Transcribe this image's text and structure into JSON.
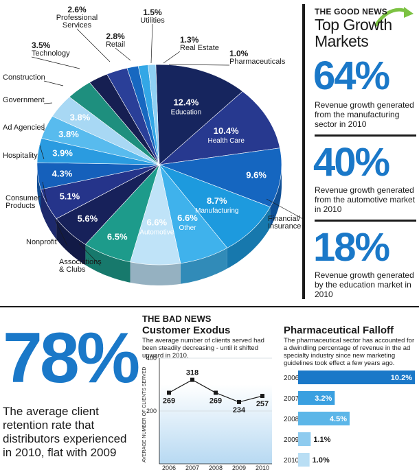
{
  "chart_data": [
    {
      "type": "pie",
      "slices": [
        {
          "name": "Education",
          "value": 12.4,
          "label": "12.4%",
          "color": "#16255e",
          "inside": true
        },
        {
          "name": "Health Care",
          "value": 10.4,
          "label": "10.4%",
          "color": "#27398f",
          "inside": true
        },
        {
          "name": "Financial/ Insurance",
          "value": 9.6,
          "label": "9.6%",
          "color": "#1566c0",
          "inside": false
        },
        {
          "name": "Manufacturing",
          "value": 8.7,
          "label": "8.7%",
          "color": "#1d9ade",
          "inside": true
        },
        {
          "name": "Other",
          "value": 6.6,
          "label": "6.6%",
          "color": "#3fb2ec",
          "inside": true
        },
        {
          "name": "Automotive",
          "value": 6.6,
          "label": "6.6%",
          "color": "#bfe3f8",
          "inside": true
        },
        {
          "name": "Associations & Clubs",
          "value": 6.5,
          "label": "6.5%",
          "color": "#1d9b8b",
          "inside": false
        },
        {
          "name": "Nonprofit",
          "value": 5.6,
          "label": "5.6%",
          "color": "#17215a",
          "inside": false
        },
        {
          "name": "Consumer Products",
          "value": 5.1,
          "label": "5.1%",
          "color": "#25348a",
          "inside": false
        },
        {
          "name": "Hospitality",
          "value": 4.3,
          "label": "4.3%",
          "color": "#1560bb",
          "inside": false
        },
        {
          "name": "Ad Agencies",
          "value": 3.9,
          "label": "3.9%",
          "color": "#2a9be0",
          "inside": false
        },
        {
          "name": "Government",
          "value": 3.8,
          "label": "3.8%",
          "color": "#58bbee",
          "inside": false
        },
        {
          "name": "Construction",
          "value": 3.8,
          "label": "3.8%",
          "color": "#a8d8f4",
          "inside": false
        },
        {
          "name": "Technology",
          "value": 3.5,
          "label": "3.5%",
          "color": "#1e8f7e",
          "inside": false
        },
        {
          "name": "Professional Services",
          "value": 2.6,
          "label": "2.6%",
          "color": "#161f52",
          "inside": false
        },
        {
          "name": "Retail",
          "value": 2.8,
          "label": "2.8%",
          "color": "#2a3f98",
          "inside": false
        },
        {
          "name": "Utilities",
          "value": 1.5,
          "label": "1.5%",
          "color": "#1768c0",
          "inside": false
        },
        {
          "name": "Real Estate",
          "value": 1.3,
          "label": "1.3%",
          "color": "#33a7e6",
          "inside": false
        },
        {
          "name": "Pharmaceuticals",
          "value": 1.0,
          "label": "1.0%",
          "color": "#8fd0f3",
          "inside": false
        }
      ]
    },
    {
      "type": "line",
      "title": "Customer Exodus",
      "subtitle": "The average number of clients served had been steadily decreasing - until it shifted upward in 2010.",
      "ylabel": "AVERAGE NUMBER OF CLIENTS SERVED",
      "x": [
        "2006",
        "2007",
        "2008",
        "2009",
        "2010"
      ],
      "y": [
        269,
        318,
        269,
        234,
        257
      ],
      "yticks": [
        200,
        400
      ],
      "ylim": [
        0,
        400
      ]
    },
    {
      "type": "bar",
      "orientation": "horizontal",
      "title": "Pharmaceutical Falloff",
      "subtitle": "The pharmaceutical sector has accounted for a dwindling percentage of revenue in the ad specialty industry since new marketing guidelines took effect a few years ago.",
      "categories": [
        "2006",
        "2007",
        "2008",
        "2009",
        "2010"
      ],
      "values": [
        10.2,
        3.2,
        4.5,
        1.1,
        1.0
      ],
      "labels": [
        "10.2%",
        "3.2%",
        "4.5%",
        "1.1%",
        "1.0%"
      ],
      "colors": [
        "#1a78c8",
        "#3aa0e0",
        "#5cb6e8",
        "#8ecbef",
        "#b9def4"
      ]
    }
  ],
  "good_news": {
    "kicker": "THE GOOD NEWS",
    "title": "Top Growth Markets",
    "stats": [
      {
        "value": "64%",
        "desc": "Revenue growth generated from the manufacturing sector in 2010"
      },
      {
        "value": "40%",
        "desc": "Revenue growth generated from the automotive market in 2010"
      },
      {
        "value": "18%",
        "desc": "Revenue growth generated by the education market in 2010"
      }
    ]
  },
  "retention": {
    "value": "78%",
    "desc": "The average client retention rate that distributors experienced in 2010, flat with 2009"
  },
  "bad_news": {
    "kicker": "THE BAD NEWS"
  },
  "colors": {
    "accent": "#1a78c8",
    "arrow": "#7cc242"
  }
}
